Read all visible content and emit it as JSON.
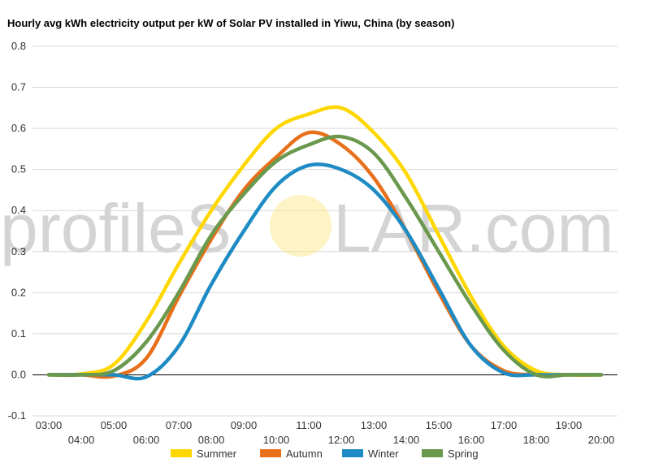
{
  "chart_data": {
    "type": "line",
    "title": "Hourly avg kWh electricity output per kW of Solar PV installed in Yiwu, China (by season)",
    "xlabel": "",
    "ylabel": "",
    "x_ticks": [
      "03:00",
      "04:00",
      "05:00",
      "06:00",
      "07:00",
      "08:00",
      "09:00",
      "10:00",
      "11:00",
      "12:00",
      "13:00",
      "14:00",
      "15:00",
      "16:00",
      "17:00",
      "18:00",
      "19:00",
      "20:00"
    ],
    "y_ticks": [
      "0.8",
      "0.7",
      "0.6",
      "0.5",
      "0.4",
      "0.3",
      "0.2",
      "0.1",
      "0.0",
      "-0.1"
    ],
    "ylim": [
      -0.1,
      0.8
    ],
    "x_hour_range": [
      2.5,
      20.5
    ],
    "grid": true,
    "legend_position": "bottom",
    "series": [
      {
        "name": "Summer",
        "color": "#FFD700",
        "x": [
          3,
          4,
          5,
          6,
          7,
          8,
          9,
          10,
          11,
          12,
          13,
          14,
          15,
          16,
          17,
          18,
          19,
          20
        ],
        "values": [
          0.0,
          0.002,
          0.025,
          0.13,
          0.27,
          0.4,
          0.51,
          0.6,
          0.635,
          0.65,
          0.59,
          0.49,
          0.34,
          0.19,
          0.07,
          0.01,
          0.0,
          0.0
        ]
      },
      {
        "name": "Autumn",
        "color": "#E8701A",
        "x": [
          3,
          4,
          5,
          6,
          7,
          8,
          9,
          10,
          11,
          12,
          13,
          14,
          15,
          16,
          17,
          18,
          19,
          20
        ],
        "values": [
          0.0,
          0.0,
          -0.003,
          0.04,
          0.19,
          0.33,
          0.45,
          0.53,
          0.59,
          0.56,
          0.48,
          0.35,
          0.2,
          0.07,
          0.01,
          0.0,
          0.0,
          0.0
        ]
      },
      {
        "name": "Winter",
        "color": "#1F8BC4",
        "x": [
          3,
          4,
          5,
          6,
          7,
          8,
          9,
          10,
          11,
          12,
          13,
          14,
          15,
          16,
          17,
          18,
          19,
          20
        ],
        "values": [
          0.0,
          0.0,
          0.0,
          -0.005,
          0.07,
          0.22,
          0.35,
          0.46,
          0.51,
          0.5,
          0.45,
          0.35,
          0.21,
          0.07,
          0.005,
          0.0,
          0.0,
          0.0
        ]
      },
      {
        "name": "Spring",
        "color": "#6A994E",
        "x": [
          3,
          4,
          5,
          6,
          7,
          8,
          9,
          10,
          11,
          12,
          13,
          14,
          15,
          16,
          17,
          18,
          19,
          20
        ],
        "values": [
          0.0,
          0.0,
          0.01,
          0.08,
          0.2,
          0.34,
          0.44,
          0.52,
          0.56,
          0.58,
          0.54,
          0.43,
          0.3,
          0.17,
          0.06,
          0.0,
          0.0,
          0.0
        ]
      }
    ]
  },
  "watermark": {
    "text_left": "profileS",
    "text_right": "LAR.com",
    "sun_color": "#FCE88A"
  }
}
